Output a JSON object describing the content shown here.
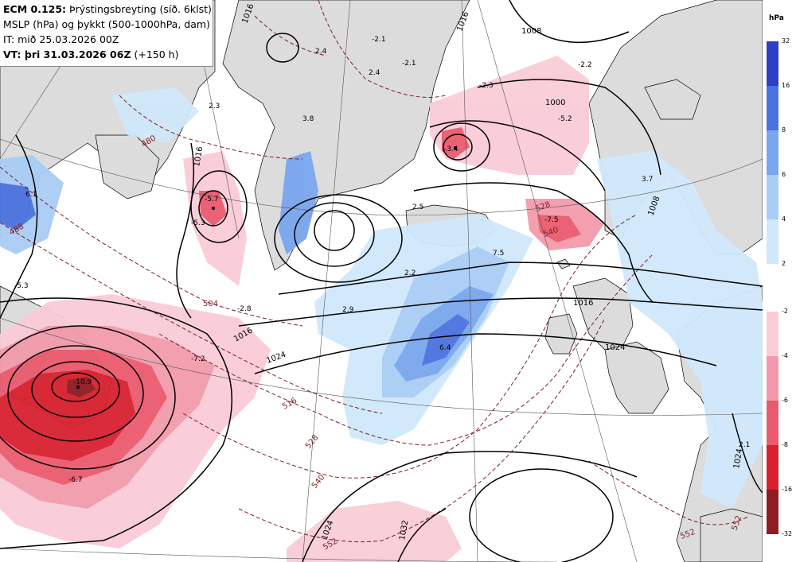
{
  "header": {
    "line1_bold": "ECM 0.125:",
    "line1_rest": " Þrýstingsbreyting (síð. 6klst)",
    "line2": "MSLP (hPa) og þykkt (500-1000hPa, dam)",
    "line3": "IT: mið 25.03.2026 00Z",
    "line4_bold": "VT: þri 31.03.2026 06Z",
    "line4_rest": " (+150 h)"
  },
  "legend": {
    "unit": "hPa",
    "positive_ticks": [
      "32",
      "16",
      "8",
      "6",
      "4",
      "2"
    ],
    "positive_colors": [
      "#2d3fc4",
      "#4a72e0",
      "#7aa6ee",
      "#a9cdf6",
      "#cfe8fb"
    ],
    "negative_ticks": [
      "-2",
      "-4",
      "-6",
      "-8",
      "-16",
      "-32"
    ],
    "negative_colors": [
      "#f9ccd6",
      "#f29aab",
      "#ea5a6e",
      "#d8202f",
      "#8f1c22"
    ]
  },
  "colors": {
    "ocean": "#ffffff",
    "land": "#dcdcdc",
    "isobar": "#000000",
    "thickness": "#7a1f25"
  },
  "labels": {
    "isobars": [
      "1016",
      "1008",
      "1000",
      "1016",
      "1016",
      "1024",
      "1032",
      "1024",
      "1024",
      "1016",
      "1008",
      "1016",
      "1024"
    ],
    "thickness": [
      "480",
      "488",
      "504",
      "516",
      "528",
      "540",
      "552",
      "528",
      "540",
      "552",
      "552"
    ],
    "tendency": [
      "2.4",
      "2.4",
      "-2.1",
      "-2.1",
      "3.8",
      "-2.2",
      "-2.3",
      "-5.2",
      "-3.4",
      "-5.7",
      "-5.3",
      "6.1",
      "-5.3",
      "-2.8",
      "2.9",
      "2.2",
      "2.5",
      "7.5",
      "-7.5",
      "3.7",
      "6.4",
      "-7.2",
      "-10.9",
      "-6.7",
      "2.3",
      "2.1"
    ]
  }
}
